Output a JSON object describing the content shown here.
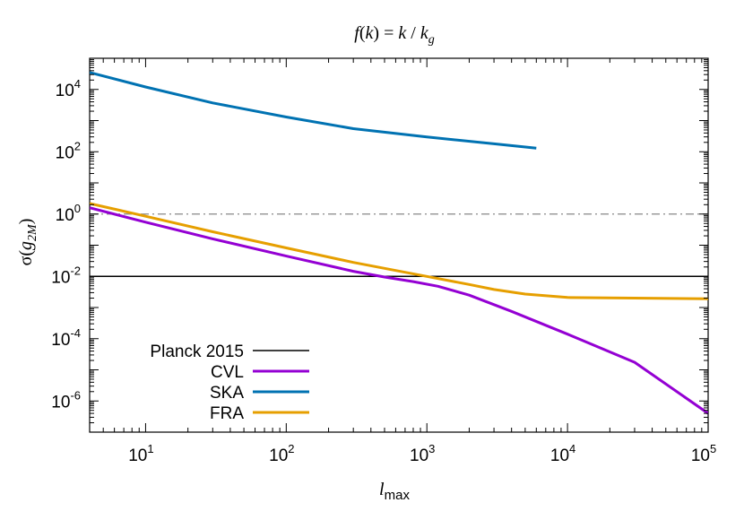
{
  "chart_data": {
    "type": "line",
    "title_parts": [
      "f",
      "(",
      "k",
      ") = ",
      "k",
      " / ",
      "k",
      "g"
    ],
    "xlabel_parts": [
      "l",
      "max"
    ],
    "ylabel_parts": [
      "σ(",
      "g",
      "2M",
      ")"
    ],
    "x_scale": "log",
    "y_scale": "log",
    "xlim": [
      4,
      100000
    ],
    "ylim": [
      1e-07,
      100000
    ],
    "x_ticks": [
      {
        "value": 10,
        "base": "10",
        "exp": "1"
      },
      {
        "value": 100,
        "base": "10",
        "exp": "2"
      },
      {
        "value": 1000,
        "base": "10",
        "exp": "3"
      },
      {
        "value": 10000,
        "base": "10",
        "exp": "4"
      },
      {
        "value": 100000,
        "base": "10",
        "exp": "5"
      }
    ],
    "y_ticks": [
      {
        "value": 1e-06,
        "base": "10",
        "exp": "-6"
      },
      {
        "value": 0.0001,
        "base": "10",
        "exp": "-4"
      },
      {
        "value": 0.01,
        "base": "10",
        "exp": "-2"
      },
      {
        "value": 1,
        "base": "10",
        "exp": "0"
      },
      {
        "value": 100,
        "base": "10",
        "exp": "2"
      },
      {
        "value": 10000,
        "base": "10",
        "exp": "4"
      }
    ],
    "legend_position": "bottom-left",
    "grid": false,
    "reference_lines": [
      {
        "label": "",
        "y": 1,
        "style": "dash-dot",
        "color": "#888888"
      }
    ],
    "series": [
      {
        "name": "Planck 2015",
        "color": "#000000",
        "width": 1.5,
        "in_legend": true,
        "x": [
          4,
          100000
        ],
        "y": [
          0.01,
          0.01
        ]
      },
      {
        "name": "CVL",
        "color": "#9400d3",
        "width": 3,
        "x": [
          4,
          10,
          30,
          100,
          300,
          500,
          800,
          1200,
          2000,
          4000,
          10000,
          30000,
          100000
        ],
        "y": [
          1.6,
          0.55,
          0.16,
          0.045,
          0.0145,
          0.0095,
          0.0068,
          0.0048,
          0.0025,
          0.00075,
          0.00014,
          1.75e-05,
          4e-07
        ]
      },
      {
        "name": "SKA",
        "color": "#0072b2",
        "width": 3,
        "x": [
          4,
          10,
          30,
          100,
          300,
          1000,
          3000,
          6000
        ],
        "y": [
          35000,
          12000,
          3700,
          1300,
          550,
          300,
          180,
          130
        ]
      },
      {
        "name": "FRA",
        "color": "#e69f00",
        "width": 3,
        "x": [
          4,
          10,
          30,
          100,
          300,
          1000,
          2000,
          3000,
          5000,
          10000,
          30000,
          100000
        ],
        "y": [
          2.2,
          0.85,
          0.27,
          0.082,
          0.028,
          0.01,
          0.0055,
          0.0038,
          0.0027,
          0.0021,
          0.002,
          0.0019
        ]
      }
    ]
  }
}
